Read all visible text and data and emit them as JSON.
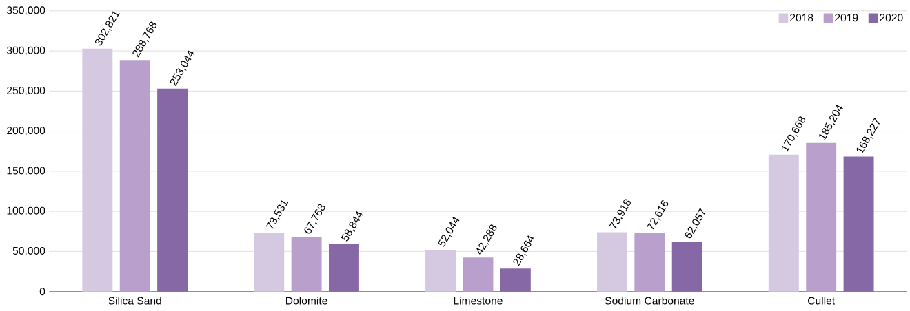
{
  "chart_data": {
    "type": "bar",
    "categories": [
      "Silica Sand",
      "Dolomite",
      "Limestone",
      "Sodium Carbonate",
      "Cullet"
    ],
    "series": [
      {
        "name": "2018",
        "color": "#d5c8e1",
        "values": [
          302821,
          73531,
          52044,
          73918,
          170668
        ],
        "value_labels": [
          "302,821",
          "73,531",
          "52,044",
          "73,918",
          "170,668"
        ]
      },
      {
        "name": "2019",
        "color": "#b9a0cc",
        "values": [
          288768,
          67768,
          42288,
          72616,
          185204
        ],
        "value_labels": [
          "288,768",
          "67,768",
          "42,288",
          "72,616",
          "185,204"
        ]
      },
      {
        "name": "2020",
        "color": "#8768a6",
        "values": [
          253044,
          58844,
          28664,
          62057,
          168227
        ],
        "value_labels": [
          "253,044",
          "58,844",
          "28,664",
          "62,057",
          "168,227"
        ]
      }
    ],
    "ylim": [
      0,
      350000
    ],
    "yticks": [
      {
        "value": 0,
        "label": "0"
      },
      {
        "value": 50000,
        "label": "50,000"
      },
      {
        "value": 100000,
        "label": "100,000"
      },
      {
        "value": 150000,
        "label": "150,000"
      },
      {
        "value": 200000,
        "label": "200,000"
      },
      {
        "value": 250000,
        "label": "250,000"
      },
      {
        "value": 300000,
        "label": "300,000"
      },
      {
        "value": 350000,
        "label": "350,000"
      }
    ],
    "grid": "y",
    "legend": "top right"
  }
}
